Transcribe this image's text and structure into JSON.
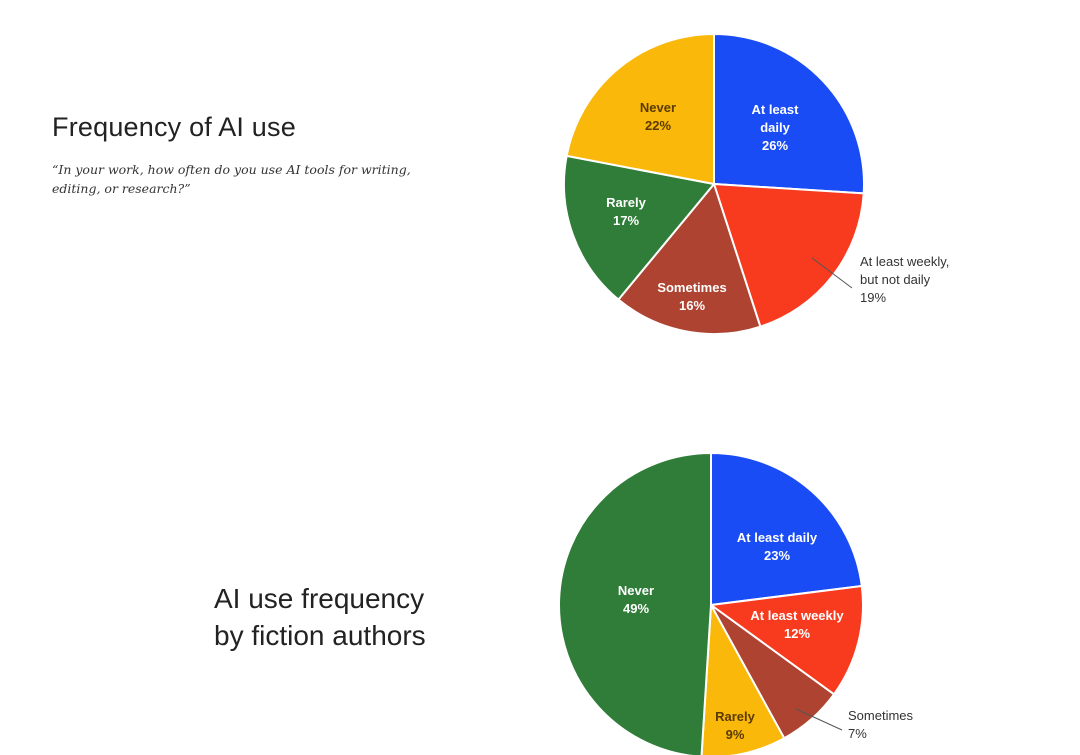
{
  "chart_data": [
    {
      "type": "pie",
      "title": "Frequency of AI use",
      "subtitle": "“In your work, how often do you use AI tools for writing, editing, or research?”",
      "slices": [
        {
          "label": [
            "At least",
            "daily",
            "26%"
          ],
          "value": 26,
          "color": "#1a4cf5",
          "text": "light"
        },
        {
          "label": [
            "At least weekly,",
            "but not daily",
            "19%"
          ],
          "value": 19,
          "color": "#f83a1e",
          "text": "outer"
        },
        {
          "label": [
            "Sometimes",
            "16%"
          ],
          "value": 16,
          "color": "#ad4330",
          "text": "light"
        },
        {
          "label": [
            "Rarely",
            "17%"
          ],
          "value": 17,
          "color": "#2f7d38",
          "text": "light"
        },
        {
          "label": [
            "Never",
            "22%"
          ],
          "value": 22,
          "color": "#fab80a",
          "text": "dark"
        }
      ]
    },
    {
      "type": "pie",
      "title": [
        "AI use frequency",
        "by fiction authors"
      ],
      "slices": [
        {
          "label": [
            "At least daily",
            "23%"
          ],
          "value": 23,
          "color": "#1a4cf5",
          "text": "light"
        },
        {
          "label": [
            "At least weekly",
            "12%"
          ],
          "value": 12,
          "color": "#f83a1e",
          "text": "light"
        },
        {
          "label": [
            "Sometimes",
            "7%"
          ],
          "value": 7,
          "color": "#ad4330",
          "text": "outer"
        },
        {
          "label": [
            "Rarely",
            "9%"
          ],
          "value": 9,
          "color": "#fab80a",
          "text": "dark"
        },
        {
          "label": [
            "Never",
            "49%"
          ],
          "value": 49,
          "color": "#2f7d38",
          "text": "light"
        }
      ]
    }
  ]
}
